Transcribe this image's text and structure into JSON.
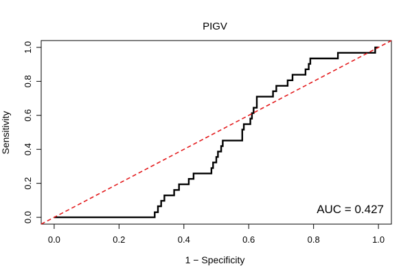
{
  "chart_data": {
    "type": "line",
    "title": "PIGV",
    "xlabel": "1 − Specificity",
    "ylabel": "Sensitivity",
    "xlim": [
      -0.04,
      1.04
    ],
    "ylim": [
      -0.04,
      1.04
    ],
    "x_ticks": [
      0.0,
      0.2,
      0.4,
      0.6,
      0.8,
      1.0
    ],
    "x_tick_labels": [
      "0.0",
      "0.2",
      "0.4",
      "0.6",
      "0.8",
      "1.0"
    ],
    "y_ticks": [
      0.0,
      0.2,
      0.4,
      0.6,
      0.8,
      1.0
    ],
    "y_tick_labels": [
      "0.0",
      "0.2",
      "0.4",
      "0.6",
      "0.8",
      "1.0"
    ],
    "grid": false,
    "annotation": "AUC = 0.427",
    "series": [
      {
        "style": "step",
        "color": "#000000",
        "points": [
          [
            0.0,
            0.0
          ],
          [
            0.31,
            0.0
          ],
          [
            0.31,
            0.03
          ],
          [
            0.32,
            0.03
          ],
          [
            0.32,
            0.065
          ],
          [
            0.33,
            0.065
          ],
          [
            0.33,
            0.097
          ],
          [
            0.34,
            0.097
          ],
          [
            0.34,
            0.129
          ],
          [
            0.37,
            0.129
          ],
          [
            0.37,
            0.161
          ],
          [
            0.385,
            0.161
          ],
          [
            0.385,
            0.194
          ],
          [
            0.415,
            0.194
          ],
          [
            0.415,
            0.226
          ],
          [
            0.43,
            0.226
          ],
          [
            0.43,
            0.258
          ],
          [
            0.485,
            0.258
          ],
          [
            0.485,
            0.29
          ],
          [
            0.49,
            0.29
          ],
          [
            0.49,
            0.323
          ],
          [
            0.5,
            0.323
          ],
          [
            0.5,
            0.355
          ],
          [
            0.505,
            0.355
          ],
          [
            0.505,
            0.387
          ],
          [
            0.515,
            0.387
          ],
          [
            0.515,
            0.419
          ],
          [
            0.52,
            0.419
          ],
          [
            0.52,
            0.452
          ],
          [
            0.58,
            0.452
          ],
          [
            0.58,
            0.516
          ],
          [
            0.585,
            0.516
          ],
          [
            0.585,
            0.548
          ],
          [
            0.605,
            0.548
          ],
          [
            0.605,
            0.581
          ],
          [
            0.61,
            0.581
          ],
          [
            0.61,
            0.613
          ],
          [
            0.615,
            0.613
          ],
          [
            0.615,
            0.645
          ],
          [
            0.625,
            0.645
          ],
          [
            0.625,
            0.71
          ],
          [
            0.675,
            0.71
          ],
          [
            0.675,
            0.742
          ],
          [
            0.685,
            0.742
          ],
          [
            0.685,
            0.774
          ],
          [
            0.72,
            0.774
          ],
          [
            0.72,
            0.806
          ],
          [
            0.735,
            0.806
          ],
          [
            0.735,
            0.839
          ],
          [
            0.775,
            0.839
          ],
          [
            0.775,
            0.871
          ],
          [
            0.785,
            0.871
          ],
          [
            0.785,
            0.903
          ],
          [
            0.79,
            0.903
          ],
          [
            0.79,
            0.935
          ],
          [
            0.875,
            0.935
          ],
          [
            0.875,
            0.968
          ],
          [
            0.99,
            0.968
          ],
          [
            0.99,
            1.0
          ],
          [
            1.0,
            1.0
          ]
        ]
      },
      {
        "style": "dashed",
        "color": "#e31a1c",
        "points": [
          [
            -0.04,
            -0.04
          ],
          [
            1.04,
            1.04
          ]
        ]
      }
    ]
  }
}
